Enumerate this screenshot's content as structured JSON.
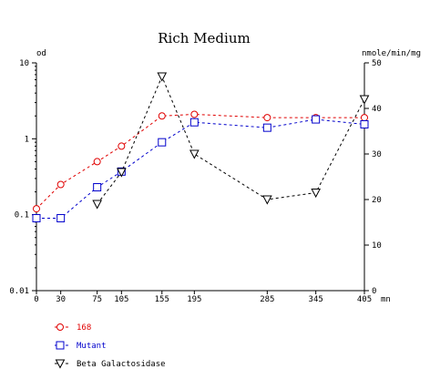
{
  "chart_data": {
    "type": "line",
    "title": "Rich Medium",
    "ylabel": "od",
    "y2label": "nmole/min/mg",
    "xunit": "mn",
    "x": [
      0,
      30,
      75,
      105,
      155,
      195,
      285,
      345,
      405
    ],
    "xticks": [
      "0",
      "30",
      "75",
      "105",
      "155",
      "195",
      "285",
      "345",
      "405"
    ],
    "xlim": [
      0,
      405
    ],
    "ylim": [
      0.01,
      10
    ],
    "yscale": "log",
    "yticks": [
      "10",
      "1",
      "0.1",
      "0.01"
    ],
    "y2lim": [
      0,
      50
    ],
    "y2ticks": [
      "0",
      "10",
      "20",
      "30",
      "40",
      "50"
    ],
    "grid": false,
    "legend_placement": "bottom-left",
    "series": [
      {
        "name": "168",
        "axis": "left",
        "color": "#e00000",
        "marker": "circle",
        "x": [
          0,
          30,
          75,
          105,
          155,
          195,
          285,
          345,
          405
        ],
        "values": [
          0.12,
          0.25,
          0.5,
          0.8,
          2.0,
          2.1,
          1.9,
          1.9,
          1.9
        ]
      },
      {
        "name": "Mutant",
        "axis": "left",
        "color": "#0000cc",
        "marker": "square",
        "x": [
          0,
          30,
          75,
          105,
          155,
          195,
          285,
          345,
          405
        ],
        "values": [
          0.09,
          0.09,
          0.23,
          0.37,
          0.9,
          1.65,
          1.4,
          1.8,
          1.55
        ]
      },
      {
        "name": "Beta Galactosidase",
        "axis": "right",
        "color": "#000000",
        "marker": "triangle-down",
        "x": [
          75,
          105,
          155,
          195,
          285,
          345,
          405
        ],
        "values": [
          19,
          26,
          47,
          30,
          20,
          21.5,
          42
        ]
      }
    ]
  }
}
